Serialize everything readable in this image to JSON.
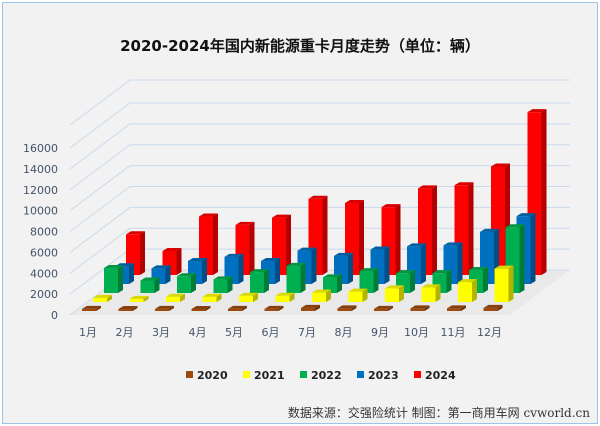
{
  "chart_data": {
    "type": "bar",
    "title": "2020-2024年国内新能源重卡月度走势（单位：辆）",
    "categories": [
      "1月",
      "2月",
      "3月",
      "4月",
      "5月",
      "6月",
      "7月",
      "8月",
      "9月",
      "10月",
      "11月",
      "12月"
    ],
    "ylim": [
      0,
      16000
    ],
    "yticks": [
      0,
      2000,
      4000,
      6000,
      8000,
      10000,
      12000,
      14000,
      16000
    ],
    "grid": true,
    "legend_placement": "bottom",
    "series": [
      {
        "name": "2020",
        "color": "#9c4a0e",
        "values": [
          200,
          150,
          200,
          150,
          200,
          200,
          300,
          250,
          200,
          250,
          250,
          300
        ]
      },
      {
        "name": "2021",
        "color": "#ffff00",
        "values": [
          400,
          300,
          500,
          500,
          600,
          600,
          900,
          1000,
          1300,
          1400,
          1900,
          3200
        ]
      },
      {
        "name": "2022",
        "color": "#00b050",
        "values": [
          2400,
          1200,
          1600,
          1300,
          2000,
          2600,
          1500,
          2100,
          1900,
          1900,
          2200,
          6300
        ]
      },
      {
        "name": "2023",
        "color": "#0070c0",
        "values": [
          1700,
          1500,
          2200,
          2600,
          2200,
          3200,
          2700,
          3300,
          3600,
          3700,
          5000,
          6500
        ]
      },
      {
        "name": "2024",
        "color": "#ff0000",
        "values": [
          3900,
          2300,
          5600,
          4800,
          5500,
          7300,
          6900,
          6500,
          8300,
          8600,
          10400,
          15600
        ]
      }
    ]
  },
  "source": "数据来源：交强险统计  制图：第一商用车网 cvworld.cn"
}
